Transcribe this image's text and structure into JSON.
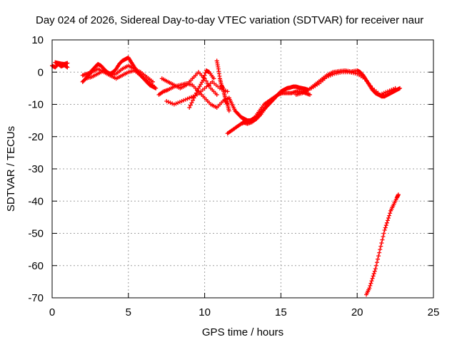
{
  "chart_data": {
    "type": "scatter",
    "title": "Day 024 of 2026, Sidereal Day-to-day VTEC variation (SDTVAR) for receiver naur",
    "xlabel": "GPS time / hours",
    "ylabel": "SDTVAR / TECUs",
    "xlim": [
      0,
      25
    ],
    "ylim": [
      -70,
      10
    ],
    "xticks": [
      0,
      5,
      10,
      15,
      20,
      25
    ],
    "yticks": [
      10,
      0,
      -10,
      -20,
      -30,
      -40,
      -50,
      -60,
      -70
    ],
    "grid": true,
    "legend": "none",
    "marker": "+",
    "series": [
      {
        "name": "SDTVAR",
        "color": "#ff0000",
        "segments": [
          {
            "x": [
              0.0,
              0.2,
              0.4,
              0.6,
              0.8,
              1.0
            ],
            "y": [
              2.0,
              1.5,
              2.5,
              1.8,
              2.2,
              1.5
            ]
          },
          {
            "x": [
              0.2,
              0.4,
              0.6,
              0.8,
              1.0
            ],
            "y": [
              3.0,
              2.8,
              2.6,
              2.5,
              2.8
            ]
          },
          {
            "x": [
              2.0,
              2.2,
              2.4,
              2.6,
              2.8,
              3.0,
              3.2,
              3.4,
              3.6,
              3.8,
              4.0,
              4.2,
              4.4,
              4.6,
              4.8,
              5.0,
              5.2,
              5.4,
              5.6,
              5.8,
              6.0,
              6.2,
              6.4,
              6.6,
              6.8
            ],
            "y": [
              -3.0,
              -2.0,
              -1.0,
              0.5,
              1.5,
              2.5,
              2.0,
              1.0,
              0.0,
              -0.5,
              0.0,
              1.0,
              2.5,
              3.5,
              4.0,
              4.5,
              3.0,
              1.5,
              0.0,
              -1.0,
              -2.0,
              -3.0,
              -4.0,
              -4.5,
              -5.0
            ]
          },
          {
            "x": [
              2.0,
              2.3,
              2.6,
              3.0,
              3.4,
              3.8,
              4.2,
              4.6,
              5.0,
              5.4,
              5.8,
              6.2,
              6.6
            ],
            "y": [
              -1.0,
              -0.5,
              0.0,
              1.0,
              0.0,
              -1.0,
              -0.5,
              1.0,
              2.0,
              1.0,
              0.0,
              -1.5,
              -3.0
            ]
          },
          {
            "x": [
              2.2,
              2.6,
              3.0,
              3.4,
              3.8,
              4.2,
              4.6,
              5.0,
              5.4,
              5.8,
              6.2,
              6.6
            ],
            "y": [
              -2.0,
              -1.5,
              -0.5,
              0.5,
              -1.0,
              -2.0,
              -1.0,
              0.0,
              0.5,
              -1.0,
              -2.5,
              -4.0
            ]
          },
          {
            "x": [
              7.0,
              7.3,
              7.6,
              8.0,
              8.4,
              8.8,
              9.2,
              9.6,
              10.0,
              10.4,
              10.8,
              11.2,
              11.6
            ],
            "y": [
              -7.0,
              -6.0,
              -5.5,
              -4.5,
              -4.0,
              -3.5,
              -4.0,
              -6.0,
              -8.0,
              -10.0,
              -11.0,
              -9.0,
              -8.0
            ]
          },
          {
            "x": [
              7.2,
              7.6,
              8.0,
              8.4,
              8.8,
              9.2,
              9.6,
              10.0,
              10.4,
              10.8
            ],
            "y": [
              -2.0,
              -3.0,
              -4.0,
              -5.0,
              -4.0,
              -2.0,
              0.0,
              -2.0,
              -5.0,
              -7.0
            ]
          },
          {
            "x": [
              7.5,
              8.0,
              8.5,
              9.0,
              9.5,
              10.0,
              10.5,
              11.0,
              11.5
            ],
            "y": [
              -9.0,
              -10.0,
              -9.0,
              -8.0,
              -7.0,
              -5.0,
              -3.0,
              -5.0,
              -6.0
            ]
          },
          {
            "x": [
              9.0,
              9.3,
              9.6,
              9.9,
              10.1,
              10.3,
              10.6
            ],
            "y": [
              -11.0,
              -8.0,
              -5.0,
              -2.5,
              0.5,
              0.0,
              -2.0
            ]
          },
          {
            "x": [
              10.8,
              10.9,
              11.0,
              11.1,
              11.2,
              11.3,
              11.4,
              11.5,
              11.6
            ],
            "y": [
              3.5,
              1.0,
              -2.0,
              -4.0,
              -5.0,
              -7.0,
              -9.0,
              -10.0,
              -12.0
            ]
          },
          {
            "x": [
              11.6,
              11.8,
              12.0,
              12.2,
              12.4,
              12.6,
              12.8,
              13.0,
              13.2,
              13.4,
              13.6,
              13.8,
              14.0,
              14.2,
              14.4,
              14.6,
              14.8,
              15.0,
              15.2,
              15.4,
              15.6,
              15.8,
              16.0,
              16.2,
              16.4,
              16.6,
              16.8
            ],
            "y": [
              -8.0,
              -10.0,
              -12.0,
              -13.0,
              -14.0,
              -14.5,
              -15.0,
              -15.0,
              -14.5,
              -14.0,
              -13.0,
              -12.0,
              -11.0,
              -10.0,
              -9.0,
              -8.0,
              -7.0,
              -6.0,
              -5.5,
              -5.0,
              -4.8,
              -4.5,
              -4.5,
              -4.8,
              -5.0,
              -5.2,
              -5.5
            ]
          },
          {
            "x": [
              11.5,
              11.8,
              12.1,
              12.4,
              12.7,
              13.0,
              13.3,
              13.6,
              13.9,
              14.2,
              14.5,
              14.8,
              15.1,
              15.4,
              15.7,
              16.0,
              16.3,
              16.6,
              16.9
            ],
            "y": [
              -19.0,
              -18.0,
              -17.0,
              -16.0,
              -15.5,
              -15.0,
              -14.0,
              -12.0,
              -10.0,
              -9.0,
              -8.0,
              -7.0,
              -6.5,
              -6.5,
              -6.5,
              -6.0,
              -6.0,
              -6.5,
              -7.0
            ]
          },
          {
            "x": [
              12.5,
              12.8,
              13.1,
              13.4,
              13.7,
              14.0,
              14.3,
              14.6,
              14.9,
              15.2
            ],
            "y": [
              -15.5,
              -16.0,
              -15.5,
              -14.5,
              -13.0,
              -11.0,
              -9.5,
              -8.0,
              -6.5,
              -5.5
            ]
          },
          {
            "x": [
              16.0,
              16.4,
              16.8,
              17.2,
              17.6,
              18.0,
              18.4,
              18.8,
              19.2,
              19.6,
              20.0,
              20.2,
              20.4,
              20.6,
              20.8,
              21.0,
              21.2,
              21.4,
              21.6,
              21.8,
              22.0,
              22.2,
              22.4,
              22.6,
              22.8
            ],
            "y": [
              -7.0,
              -6.5,
              -5.5,
              -4.0,
              -2.5,
              -1.0,
              0.0,
              0.3,
              0.5,
              0.2,
              0.5,
              0.0,
              -1.0,
              -2.5,
              -4.0,
              -5.5,
              -6.5,
              -7.0,
              -7.5,
              -7.5,
              -7.0,
              -6.5,
              -6.0,
              -5.5,
              -5.0
            ]
          },
          {
            "x": [
              17.0,
              17.5,
              18.0,
              18.5,
              19.0,
              19.5,
              20.0,
              20.5,
              21.0,
              21.5,
              22.0,
              22.5
            ],
            "y": [
              -5.0,
              -3.5,
              -1.5,
              -0.5,
              0.0,
              0.0,
              -0.5,
              -2.0,
              -5.0,
              -7.0,
              -6.0,
              -5.0
            ]
          },
          {
            "x": [
              20.6,
              20.8,
              21.0,
              21.2,
              21.4,
              21.6,
              21.8,
              22.0,
              22.2,
              22.4,
              22.6,
              22.7
            ],
            "y": [
              -69.0,
              -67.0,
              -64.0,
              -61.0,
              -57.0,
              -53.0,
              -49.0,
              -46.0,
              -43.0,
              -41.0,
              -39.0,
              -38.0
            ]
          }
        ]
      }
    ]
  }
}
